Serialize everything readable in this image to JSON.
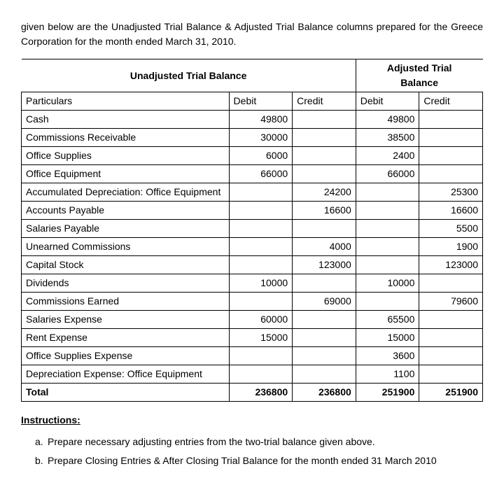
{
  "intro": "given below are the Unadjusted Trial Balance & Adjusted Trial Balance columns prepared for the Greece Corporation for the month ended March 31, 2010.",
  "table": {
    "header": {
      "unadjusted": "Unadjusted Trial Balance",
      "adjusted_l1": "Adjusted Trial",
      "adjusted_l2": "Balance",
      "particulars": "Particulars",
      "debit": "Debit",
      "credit": "Credit"
    },
    "rows": [
      {
        "p": "Cash",
        "ud": "49800",
        "uc": "",
        "ad": "49800",
        "ac": ""
      },
      {
        "p": "Commissions Receivable",
        "ud": "30000",
        "uc": "",
        "ad": "38500",
        "ac": ""
      },
      {
        "p": "Office Supplies",
        "ud": "6000",
        "uc": "",
        "ad": "2400",
        "ac": ""
      },
      {
        "p": "Office Equipment",
        "ud": "66000",
        "uc": "",
        "ad": "66000",
        "ac": ""
      },
      {
        "p": "Accumulated Depreciation: Office Equipment",
        "ud": "",
        "uc": "24200",
        "ad": "",
        "ac": "25300"
      },
      {
        "p": "Accounts Payable",
        "ud": "",
        "uc": "16600",
        "ad": "",
        "ac": "16600"
      },
      {
        "p": "Salaries Payable",
        "ud": "",
        "uc": "",
        "ad": "",
        "ac": "5500"
      },
      {
        "p": "Unearned Commissions",
        "ud": "",
        "uc": "4000",
        "ad": "",
        "ac": "1900"
      },
      {
        "p": "Capital Stock",
        "ud": "",
        "uc": "123000",
        "ad": "",
        "ac": "123000"
      },
      {
        "p": "Dividends",
        "ud": "10000",
        "uc": "",
        "ad": "10000",
        "ac": ""
      },
      {
        "p": "Commissions Earned",
        "ud": "",
        "uc": "69000",
        "ad": "",
        "ac": "79600"
      },
      {
        "p": "Salaries Expense",
        "ud": "60000",
        "uc": "",
        "ad": "65500",
        "ac": ""
      },
      {
        "p": "Rent Expense",
        "ud": "15000",
        "uc": "",
        "ad": "15000",
        "ac": ""
      },
      {
        "p": "Office Supplies Expense",
        "ud": "",
        "uc": "",
        "ad": "3600",
        "ac": ""
      },
      {
        "p": "Depreciation Expense: Office Equipment",
        "ud": "",
        "uc": "",
        "ad": "1100",
        "ac": ""
      }
    ],
    "total": {
      "p": "Total",
      "ud": "236800",
      "uc": "236800",
      "ad": "251900",
      "ac": "251900"
    }
  },
  "instructions": {
    "title": "Instructions:",
    "items": [
      {
        "label": "a.",
        "text": "Prepare necessary adjusting entries from the two-trial balance given above."
      },
      {
        "label": "b.",
        "text": "Prepare Closing Entries & After Closing Trial Balance for the month ended 31 March 2010"
      }
    ]
  }
}
